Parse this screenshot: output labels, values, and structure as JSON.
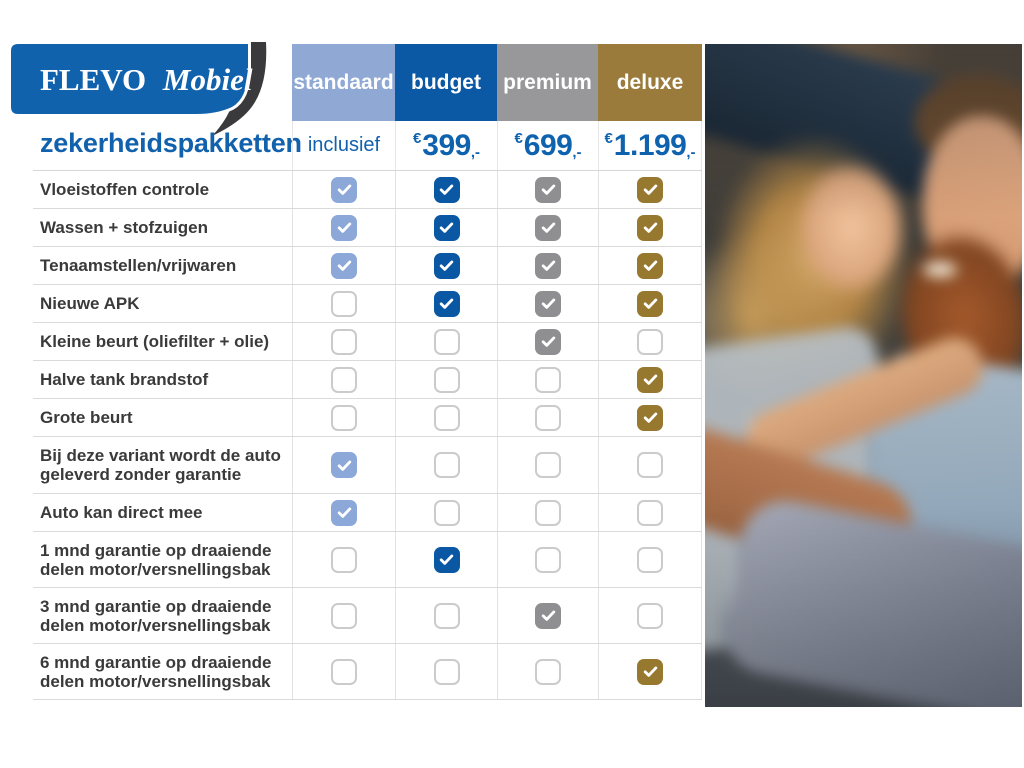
{
  "brand": {
    "name_primary": "FLEVO",
    "name_secondary": "Mobiel",
    "page_title": "zekerheidspakketten",
    "logo_blue": "#1162ac",
    "logo_swoosh_dark": "#3a3a3c"
  },
  "table": {
    "price_text_color": "#0f62ae",
    "label_color": "#3a3a3a",
    "packages": [
      {
        "name": "standaard",
        "header_color": "#8fa9d4",
        "check_color": "#8ca8d8",
        "price": {
          "type": "text",
          "text": "inclusief"
        }
      },
      {
        "name": "budget",
        "header_color": "#0b58a5",
        "check_color": "#0a57a4",
        "price": {
          "type": "amount",
          "currency": "€",
          "amount": "399",
          "suffix": ",-"
        }
      },
      {
        "name": "premium",
        "header_color": "#98989a",
        "check_color": "#8f8f91",
        "price": {
          "type": "amount",
          "currency": "€",
          "amount": "699",
          "suffix": ",-"
        }
      },
      {
        "name": "deluxe",
        "header_color": "#9a7b3c",
        "check_color": "#97782f",
        "price": {
          "type": "amount",
          "currency": "€",
          "amount": "1.199",
          "suffix": ",-"
        }
      }
    ],
    "rows": [
      {
        "label": "Vloeistoffen controle",
        "included": [
          true,
          true,
          true,
          true
        ]
      },
      {
        "label": "Wassen + stofzuigen",
        "included": [
          true,
          true,
          true,
          true
        ]
      },
      {
        "label": "Tenaamstellen/vrijwaren",
        "included": [
          true,
          true,
          true,
          true
        ]
      },
      {
        "label": "Nieuwe APK",
        "included": [
          false,
          true,
          true,
          true
        ]
      },
      {
        "label": "Kleine beurt (oliefilter + olie)",
        "included": [
          false,
          false,
          true,
          false
        ]
      },
      {
        "label": "Halve tank brandstof",
        "included": [
          false,
          false,
          false,
          true
        ]
      },
      {
        "label": "Grote beurt",
        "included": [
          false,
          false,
          false,
          true
        ]
      },
      {
        "label": "Bij deze variant wordt de auto\ngeleverd zonder garantie",
        "included": [
          true,
          false,
          false,
          false
        ]
      },
      {
        "label": "Auto kan direct mee",
        "included": [
          true,
          false,
          false,
          false
        ]
      },
      {
        "label": "1 mnd garantie op draaiende\ndelen motor/versnellingsbak",
        "included": [
          false,
          true,
          false,
          false
        ]
      },
      {
        "label": "3 mnd garantie op draaiende\ndelen motor/versnellingsbak",
        "included": [
          false,
          false,
          true,
          false
        ]
      },
      {
        "label": "6 mnd garantie op draaiende\ndelen motor/versnellingsbak",
        "included": [
          false,
          false,
          false,
          true
        ]
      }
    ]
  },
  "photo": {
    "description": "Smiling couple sitting together in a car"
  }
}
